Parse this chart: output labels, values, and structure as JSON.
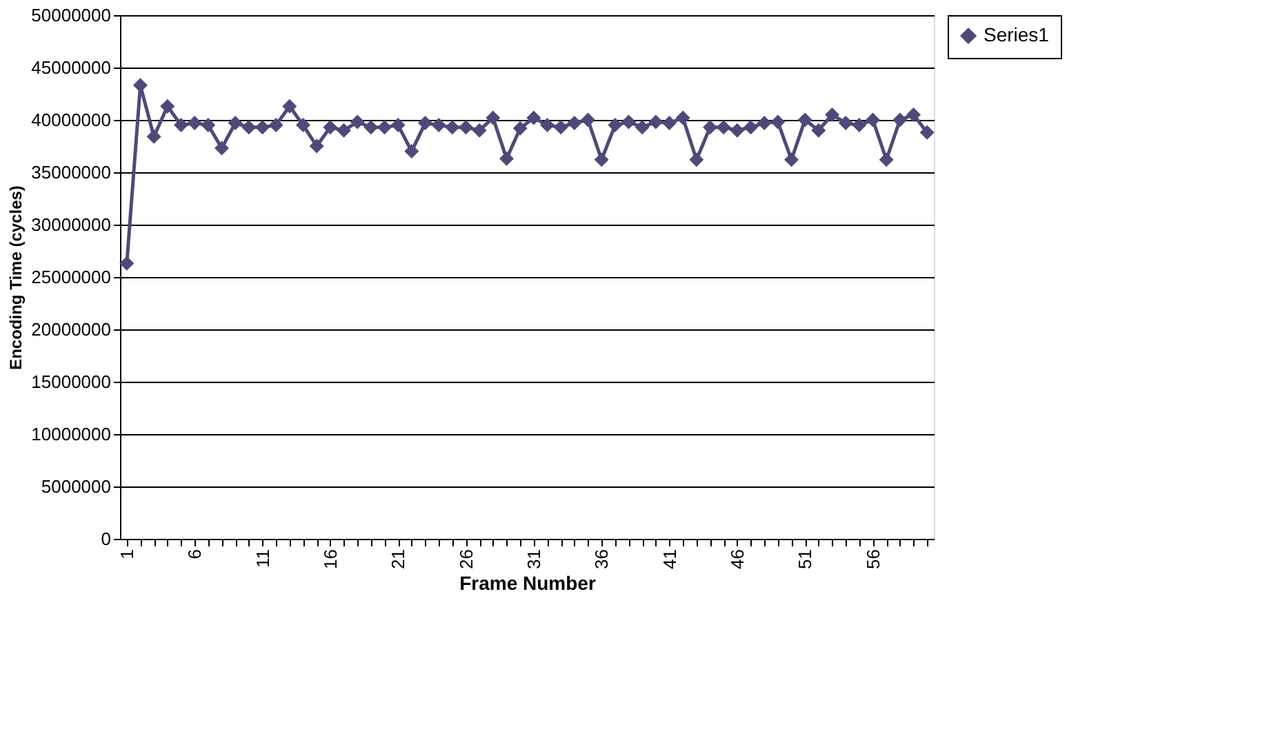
{
  "chart_data": {
    "type": "line",
    "xlabel": "Frame Number",
    "ylabel": "Encoding Time (cycles)",
    "categories": [
      "1",
      null,
      null,
      null,
      null,
      "6",
      null,
      null,
      null,
      null,
      "11",
      null,
      null,
      null,
      null,
      "16",
      null,
      null,
      null,
      null,
      "21",
      null,
      null,
      null,
      null,
      "26",
      null,
      null,
      null,
      null,
      "31",
      null,
      null,
      null,
      null,
      "36",
      null,
      null,
      null,
      null,
      "41",
      null,
      null,
      null,
      null,
      "46",
      null,
      null,
      null,
      null,
      "51",
      null,
      null,
      null,
      null,
      "56",
      null,
      null,
      null,
      null
    ],
    "series": [
      {
        "name": "Series1",
        "color": "#4d4a7a",
        "values": [
          26300000,
          43300000,
          38400000,
          41300000,
          39500000,
          39700000,
          39500000,
          37300000,
          39700000,
          39300000,
          39300000,
          39500000,
          41300000,
          39500000,
          37500000,
          39300000,
          39000000,
          39800000,
          39300000,
          39300000,
          39500000,
          37000000,
          39700000,
          39500000,
          39300000,
          39300000,
          39000000,
          40200000,
          36300000,
          39200000,
          40200000,
          39500000,
          39300000,
          39700000,
          40000000,
          36200000,
          39500000,
          39800000,
          39300000,
          39800000,
          39700000,
          40200000,
          36200000,
          39300000,
          39300000,
          39000000,
          39300000,
          39700000,
          39800000,
          36200000,
          40000000,
          39000000,
          40500000,
          39700000,
          39500000,
          40000000,
          36200000,
          40000000,
          40500000,
          38800000
        ]
      }
    ],
    "ylim": [
      0,
      50000000
    ],
    "yticks": [
      0,
      5000000,
      10000000,
      15000000,
      20000000,
      25000000,
      30000000,
      35000000,
      40000000,
      45000000,
      50000000
    ],
    "grid": "y",
    "legend": "right",
    "marker": "diamond",
    "line_style": "solid"
  }
}
